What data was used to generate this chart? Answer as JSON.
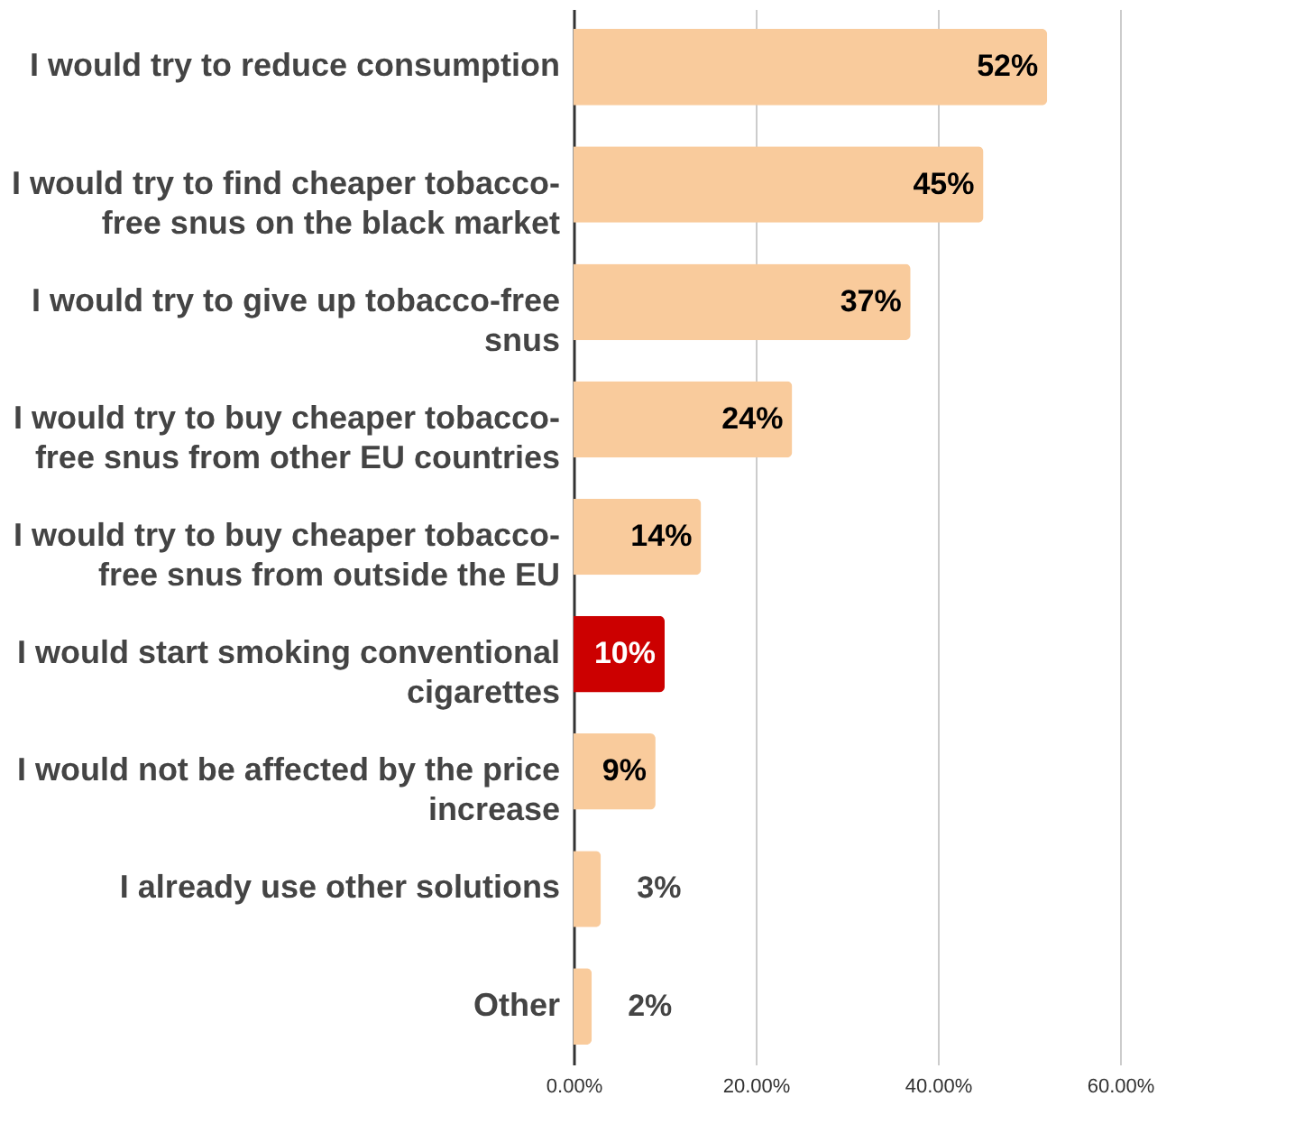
{
  "chart_data": {
    "type": "bar",
    "orientation": "horizontal",
    "categories": [
      "I would try to reduce consumption",
      "I would try to find cheaper tobacco-free snus on the black market",
      "I would try to give up tobacco-free snus",
      "I would try to buy cheaper tobacco-free snus from other EU countries",
      "I would try to buy cheaper tobacco-free snus from outside the EU",
      "I would start smoking conventional cigarettes",
      "I would not be affected by the price increase",
      "I already use other solutions",
      "Other"
    ],
    "values": [
      52,
      45,
      37,
      24,
      14,
      10,
      9,
      3,
      2
    ],
    "colors": [
      "#f9cb9c",
      "#f9cb9c",
      "#f9cb9c",
      "#f9cb9c",
      "#f9cb9c",
      "#cc0000",
      "#f9cb9c",
      "#f9cb9c",
      "#f9cb9c"
    ],
    "value_labels": [
      "52%",
      "45%",
      "37%",
      "24%",
      "14%",
      "10%",
      "9%",
      "3%",
      "2%"
    ],
    "xlim": [
      0,
      60
    ],
    "xticks": [
      {
        "value": 0,
        "label": "0.00%"
      },
      {
        "value": 20,
        "label": "20.00%"
      },
      {
        "value": 40,
        "label": "40.00%"
      },
      {
        "value": 60,
        "label": "60.00%"
      }
    ],
    "grid": "x"
  }
}
